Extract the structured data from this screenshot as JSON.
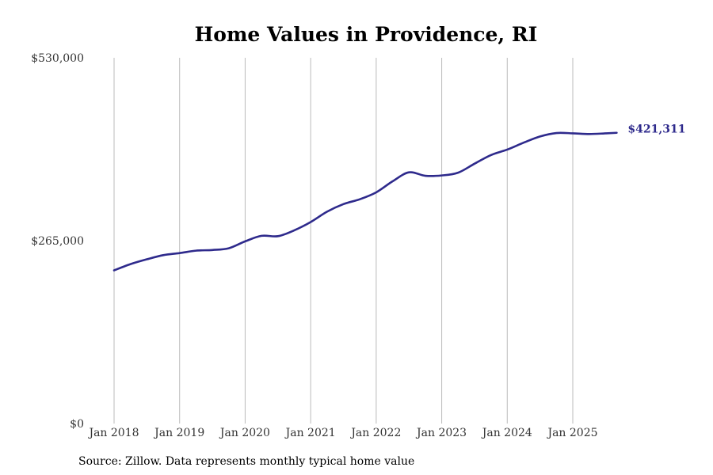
{
  "chart_data": {
    "type": "line",
    "title": "Home Values in Providence, RI",
    "xlabel": "",
    "ylabel": "",
    "ylim": [
      0,
      530000
    ],
    "y_ticks": [
      0,
      265000,
      530000
    ],
    "y_tick_labels": [
      "$0",
      "$265,000",
      "$530,000"
    ],
    "x_range": [
      2018.0,
      2025.75
    ],
    "x_ticks": [
      2018,
      2019,
      2020,
      2021,
      2022,
      2023,
      2024,
      2025
    ],
    "x_tick_labels": [
      "Jan 2018",
      "Jan 2019",
      "Jan 2020",
      "Jan 2021",
      "Jan 2022",
      "Jan 2023",
      "Jan 2024",
      "Jan 2025"
    ],
    "grid": "vertical",
    "series": [
      {
        "name": "Typical home value",
        "color": "#2e2a8c",
        "x": [
          2018.0,
          2018.25,
          2018.5,
          2018.75,
          2019.0,
          2019.25,
          2019.5,
          2019.75,
          2020.0,
          2020.25,
          2020.5,
          2020.75,
          2021.0,
          2021.25,
          2021.5,
          2021.75,
          2022.0,
          2022.25,
          2022.5,
          2022.75,
          2023.0,
          2023.25,
          2023.5,
          2023.75,
          2024.0,
          2024.25,
          2024.5,
          2024.75,
          2025.0,
          2025.25,
          2025.5,
          2025.67
        ],
        "values": [
          222000,
          231000,
          238000,
          244000,
          247000,
          250500,
          251500,
          254000,
          264000,
          272000,
          271500,
          280000,
          292000,
          307000,
          318000,
          325000,
          335000,
          351000,
          364000,
          359000,
          359500,
          363500,
          376500,
          389000,
          397000,
          407000,
          416000,
          421000,
          420500,
          419500,
          420500,
          421311
        ]
      }
    ],
    "end_label": "$421,311",
    "source_text": "Source: Zillow. Data represents monthly typical home value"
  }
}
